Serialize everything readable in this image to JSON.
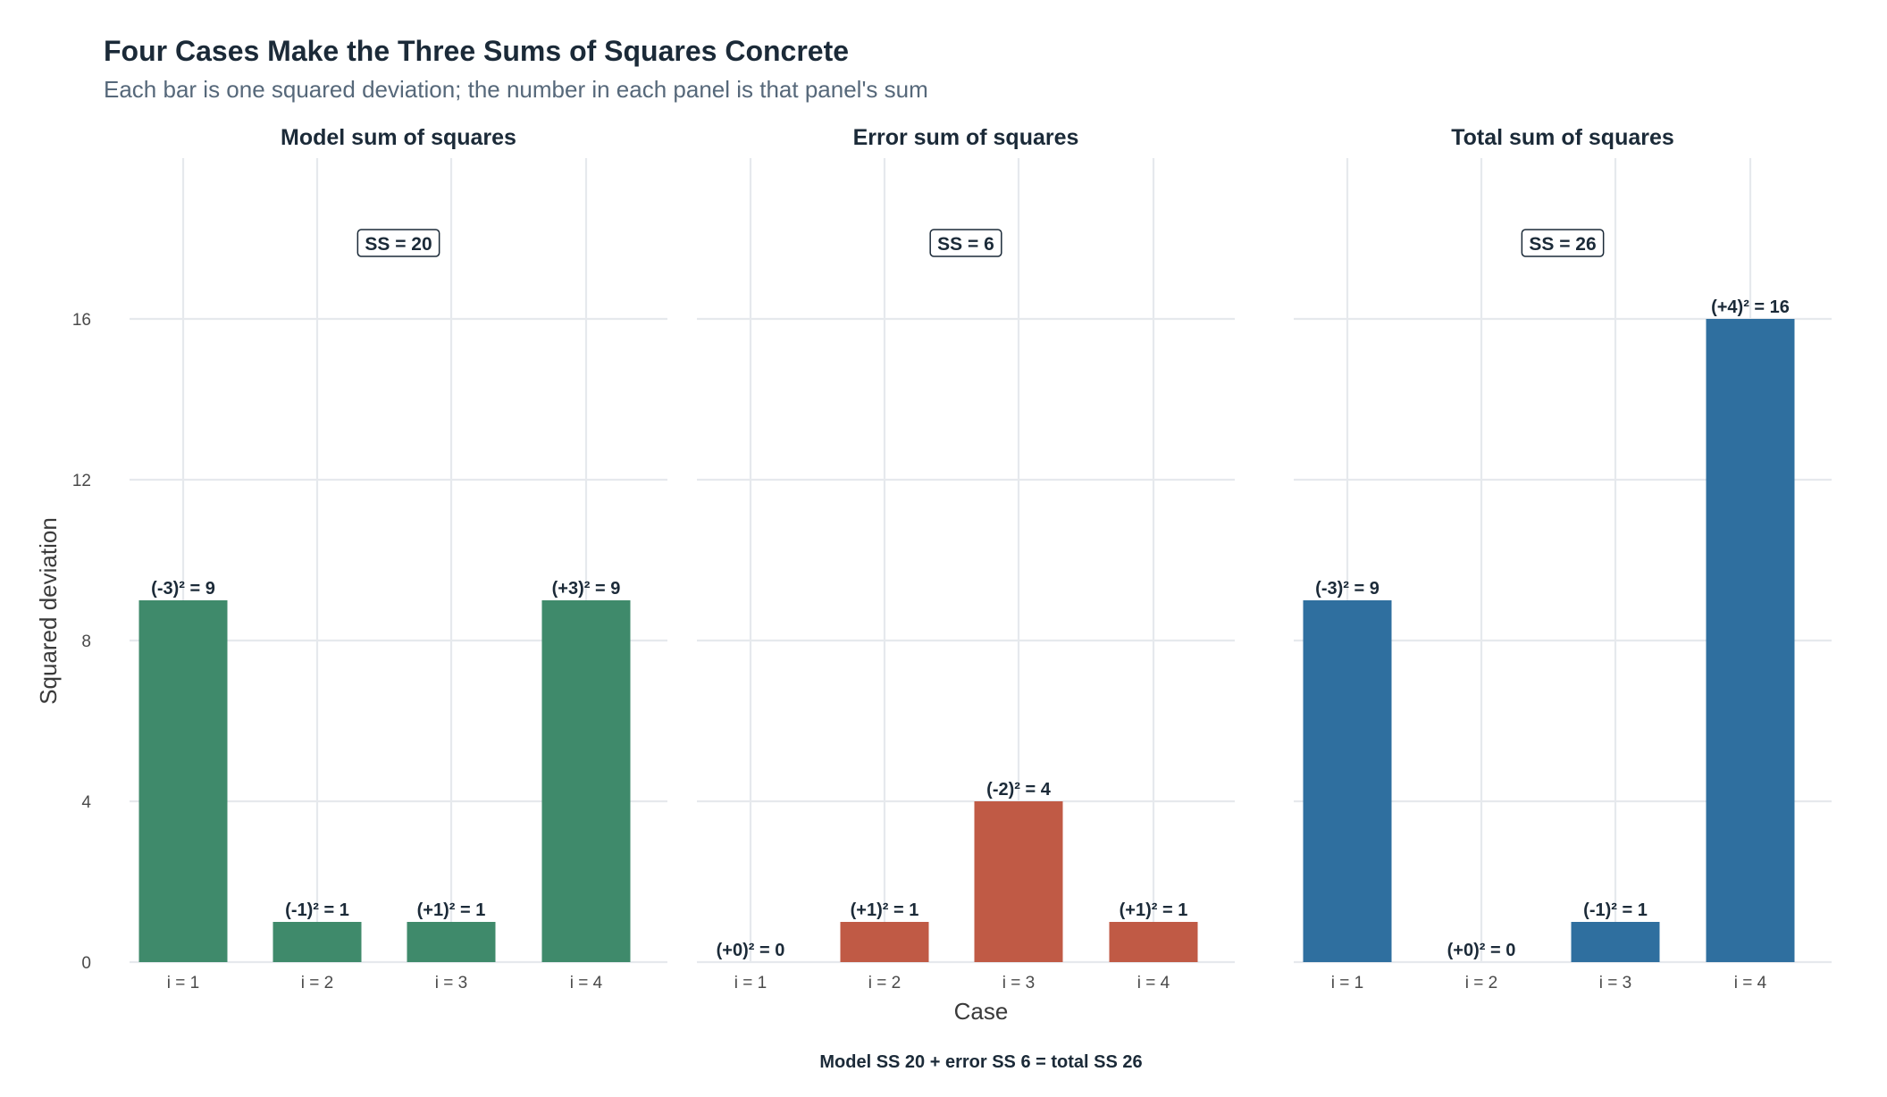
{
  "chart_data": {
    "type": "bar",
    "title": "Four Cases Make the Three Sums of Squares Concrete",
    "subtitle": "Each bar is one squared deviation; the number in each panel is that panel's sum",
    "xlabel": "Case",
    "ylabel": "Squared deviation",
    "caption": "Model SS 20 + error SS 6 = total SS 26",
    "ylim": [
      0,
      20
    ],
    "y_ticks": [
      0,
      4,
      8,
      12,
      16
    ],
    "y_tick_labels": [
      "0",
      "4",
      "8",
      "12",
      "16"
    ],
    "categories": [
      "i = 1",
      "i = 2",
      "i = 3",
      "i = 4"
    ],
    "grid": true,
    "legend": "none",
    "panels": [
      {
        "name": "Model sum of squares",
        "color": "#3f8a6b",
        "values": [
          9,
          1,
          1,
          9
        ],
        "labels": [
          "(-3)² = 9",
          "(-1)² = 1",
          "(+1)² = 1",
          "(+3)² = 9"
        ],
        "ss_label": "SS = 20"
      },
      {
        "name": "Error sum of squares",
        "color": "#c05a45",
        "values": [
          0,
          1,
          4,
          1
        ],
        "labels": [
          "(+0)² = 0",
          "(+1)² = 1",
          "(-2)² = 4",
          "(+1)² = 1"
        ],
        "ss_label": "SS = 6"
      },
      {
        "name": "Total sum of squares",
        "color": "#2f6f9f",
        "values": [
          9,
          0,
          1,
          16
        ],
        "labels": [
          "(-3)² = 9",
          "(+0)² = 0",
          "(-1)² = 1",
          "(+4)² = 16"
        ],
        "ss_label": "SS = 26"
      }
    ]
  }
}
